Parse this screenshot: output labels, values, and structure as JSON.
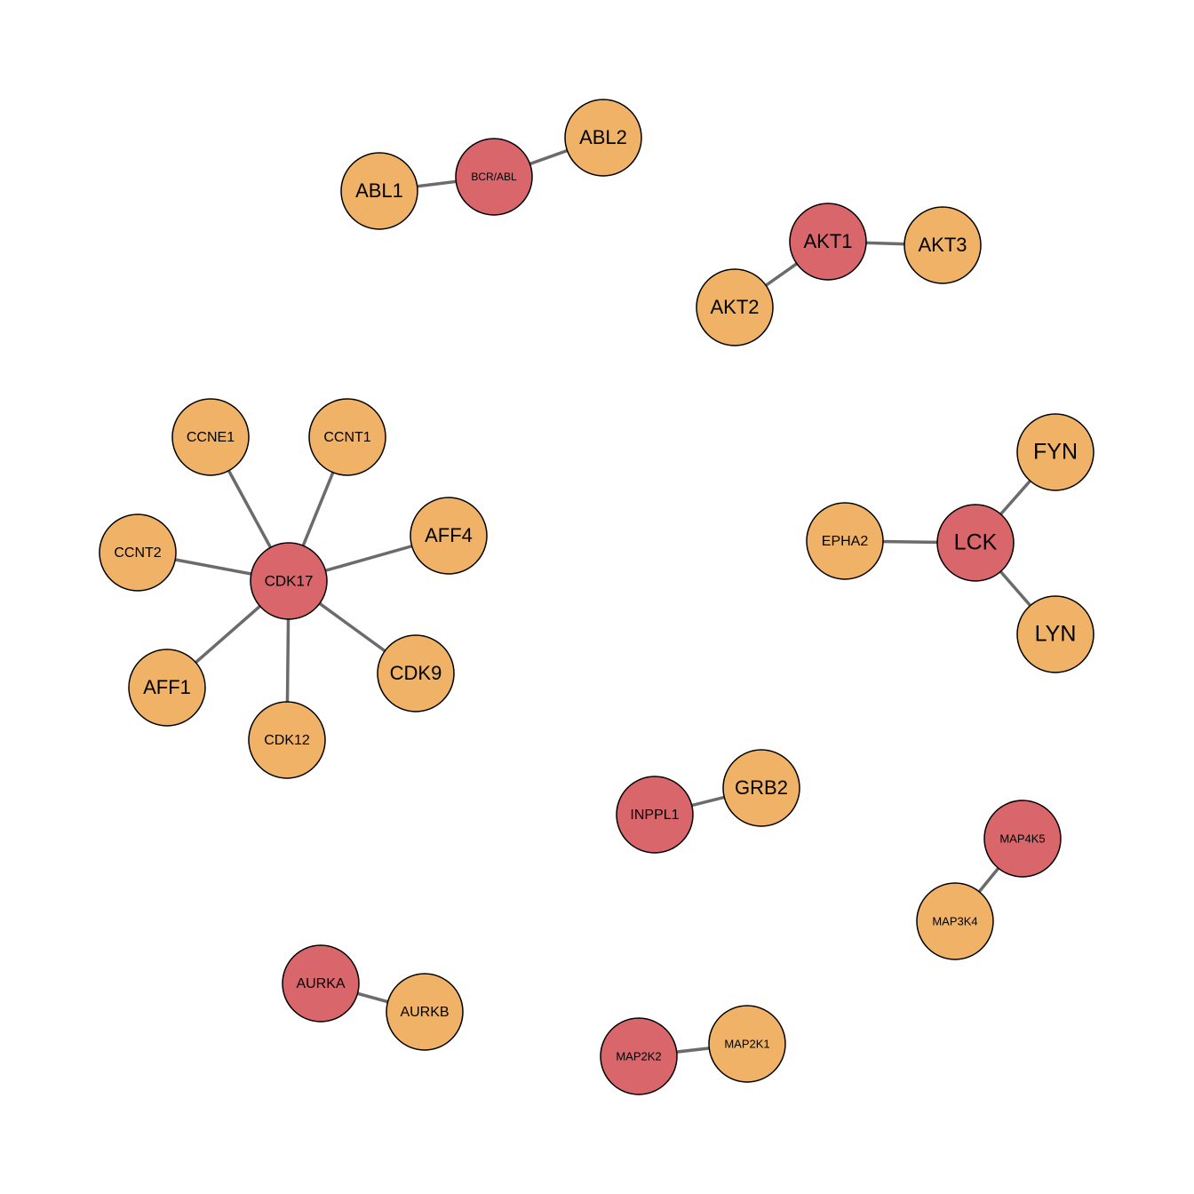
{
  "nodes": [
    {
      "label": "BCR/ABL"
    },
    {
      "label": "ABL1"
    },
    {
      "label": "ABL2"
    },
    {
      "label": "AKT1"
    },
    {
      "label": "AKT3"
    },
    {
      "label": "AKT2"
    },
    {
      "label": "CDK17"
    },
    {
      "label": "CCNE1"
    },
    {
      "label": "CCNT1"
    },
    {
      "label": "AFF4"
    },
    {
      "label": "CCNT2"
    },
    {
      "label": "AFF1"
    },
    {
      "label": "CDK12"
    },
    {
      "label": "CDK9"
    },
    {
      "label": "LCK"
    },
    {
      "label": "FYN"
    },
    {
      "label": "EPHA2"
    },
    {
      "label": "LYN"
    },
    {
      "label": "INPPL1"
    },
    {
      "label": "GRB2"
    },
    {
      "label": "MAP4K5"
    },
    {
      "label": "MAP3K4"
    },
    {
      "label": "AURKA"
    },
    {
      "label": "AURKB"
    },
    {
      "label": "MAP2K2"
    },
    {
      "label": "MAP2K1"
    }
  ]
}
